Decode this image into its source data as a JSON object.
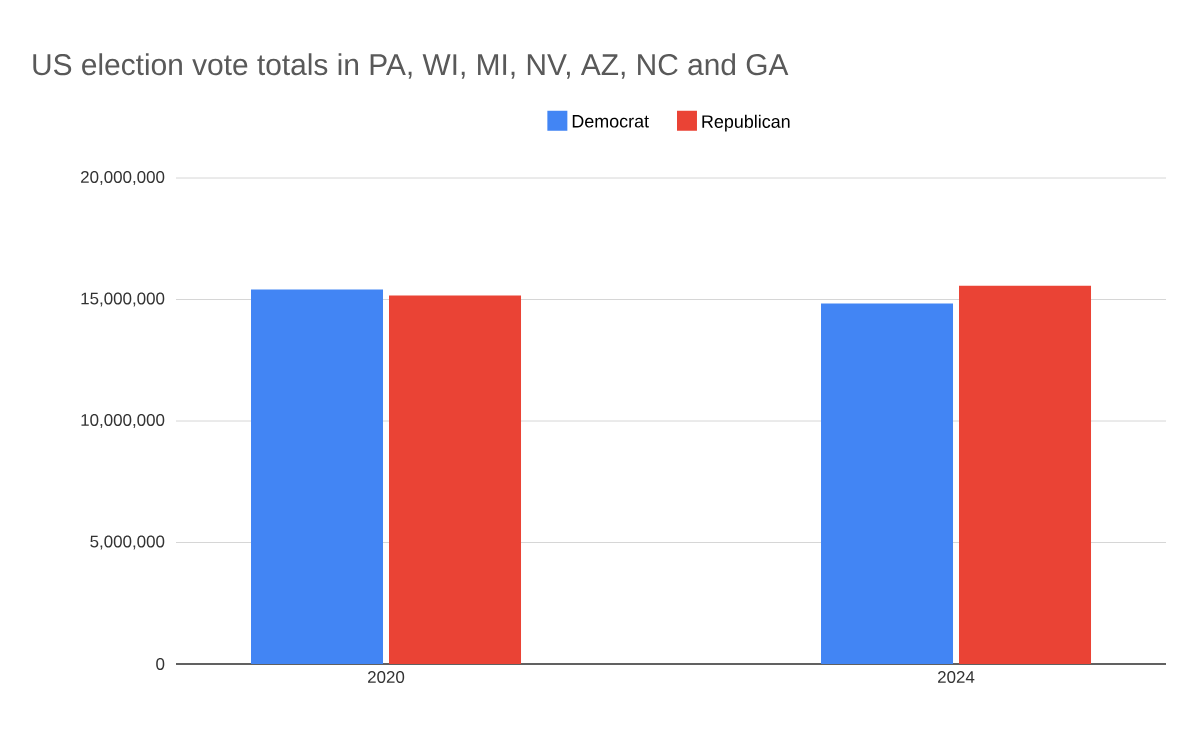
{
  "chart_data": {
    "type": "bar",
    "title": "US election vote totals in PA, WI, MI, NV, AZ, NC and GA",
    "categories": [
      "2020",
      "2024"
    ],
    "series": [
      {
        "name": "Democrat",
        "color": "#4285f4",
        "values": [
          15410000,
          14840000
        ]
      },
      {
        "name": "Republican",
        "color": "#ea4335",
        "values": [
          15160000,
          15570000
        ]
      }
    ],
    "ylim": [
      0,
      20000000
    ],
    "yticks": [
      {
        "value": 0,
        "label": "0"
      },
      {
        "value": 5000000,
        "label": "5,000,000"
      },
      {
        "value": 10000000,
        "label": "10,000,000"
      },
      {
        "value": 15000000,
        "label": "15,000,000"
      },
      {
        "value": 20000000,
        "label": "20,000,000"
      }
    ],
    "grid": "y",
    "legend": "top"
  }
}
